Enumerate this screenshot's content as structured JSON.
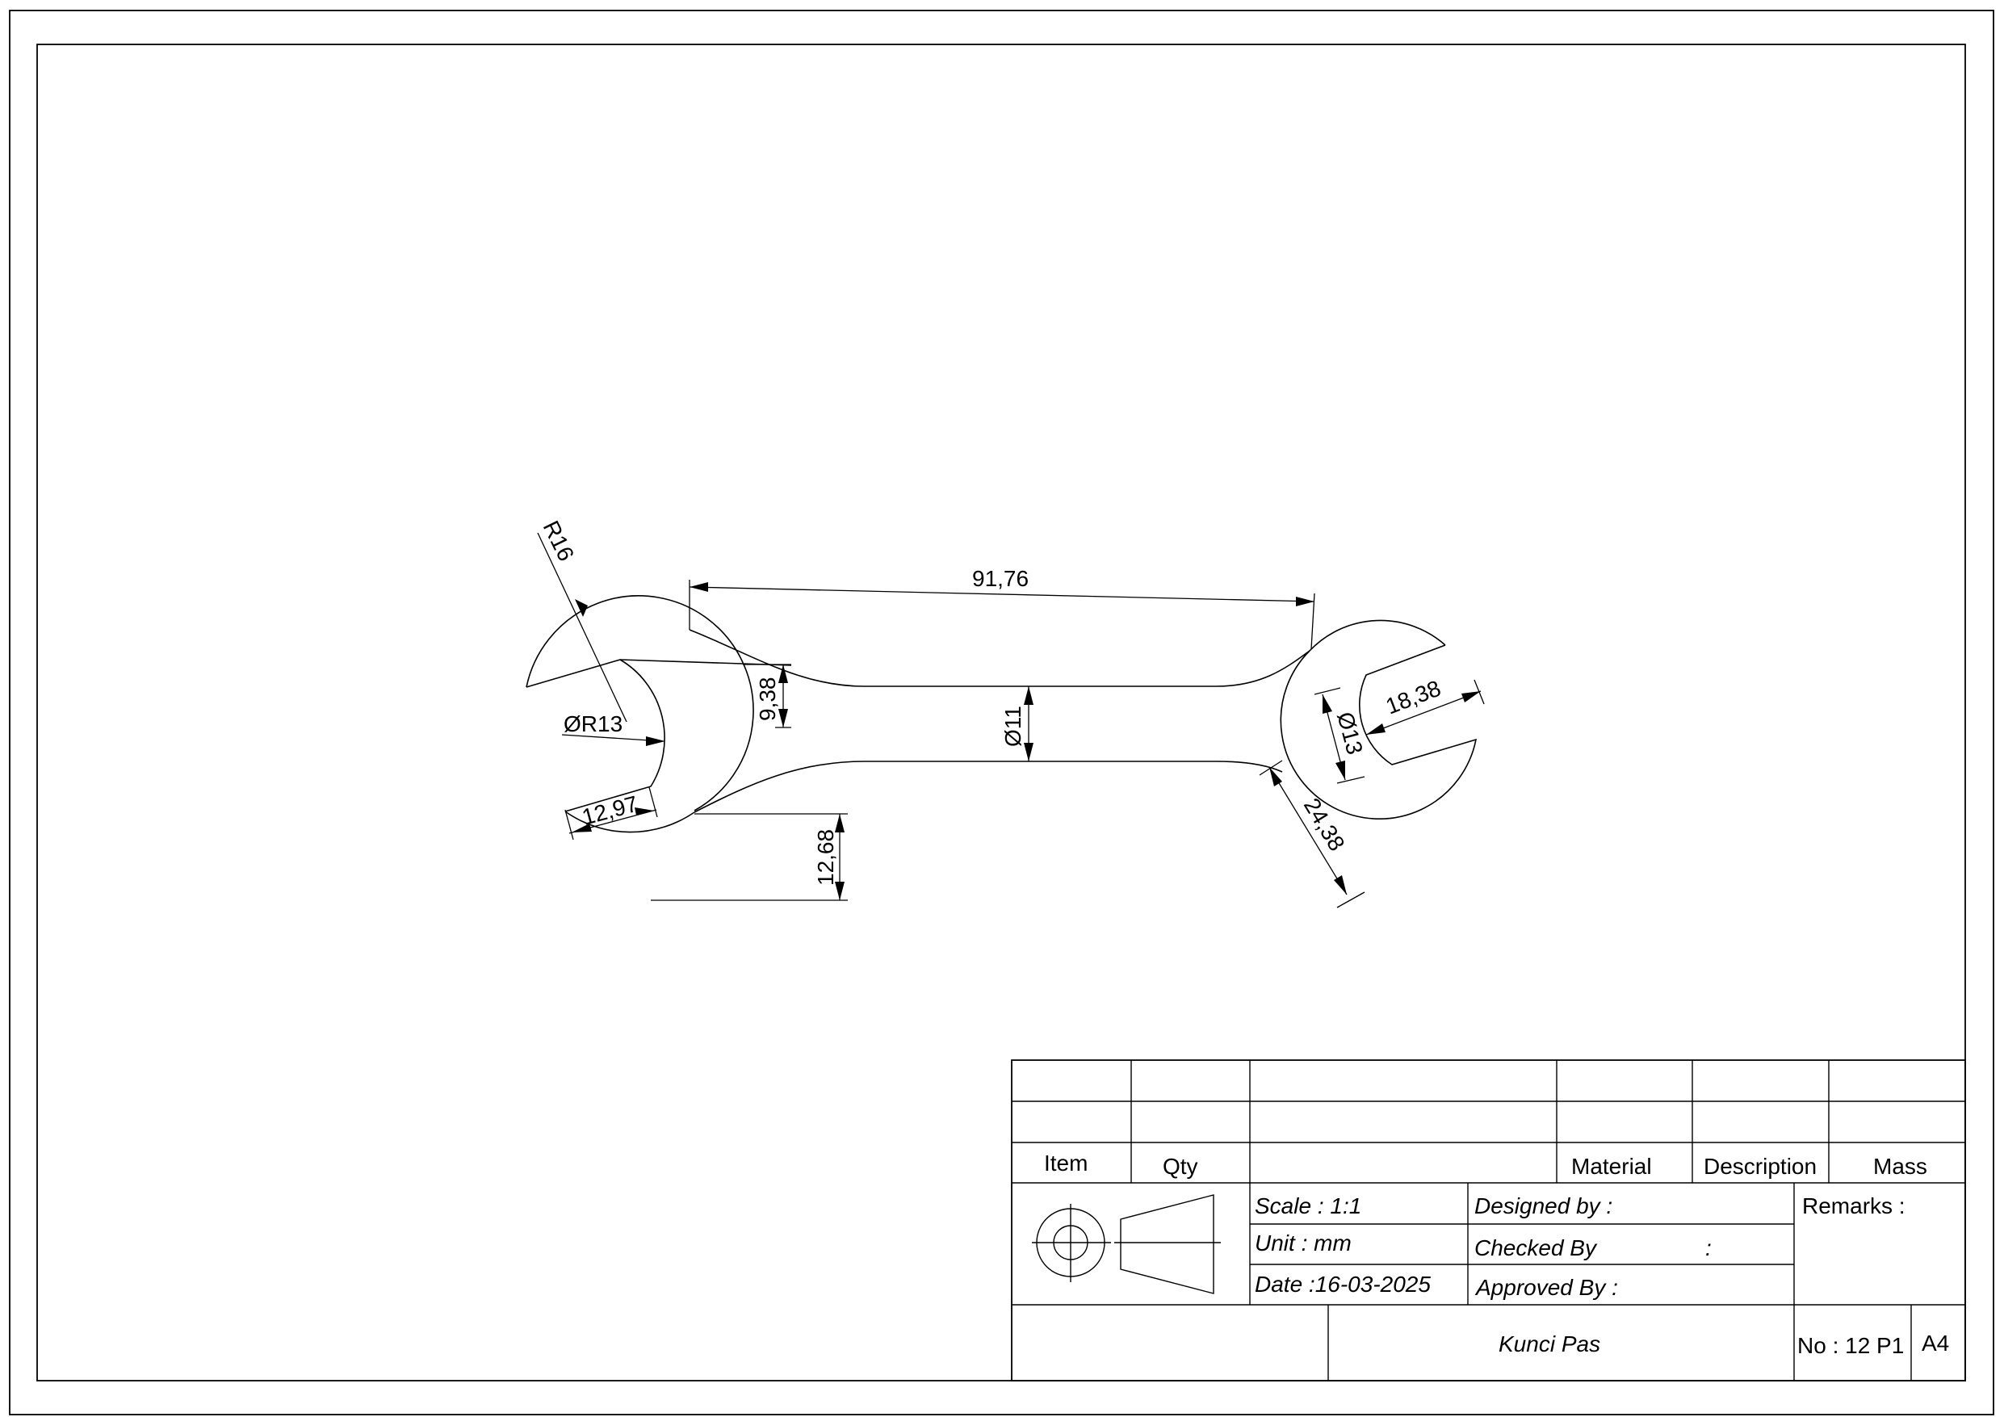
{
  "drawing": {
    "dimensions": {
      "r16": "R16",
      "r13": "ØR13",
      "d1297": "12,97",
      "d938": "9,38",
      "d9176": "91,76",
      "d11": "Ø11",
      "d1268": "12,68",
      "d13": "Ø13",
      "d1838": "18,38",
      "d2438": "24,38"
    }
  },
  "title_block": {
    "headers": {
      "item": "Item",
      "qty": "Qty",
      "material": "Material",
      "description": "Description",
      "mass": "Mass"
    },
    "scale": "Scale : 1:1",
    "unit": "Unit : mm",
    "date": "Date :16-03-2025",
    "designed_by": "Designed by :",
    "checked_by": "Checked By",
    "checked_colon": ":",
    "approved_by": "Approved By :",
    "remarks": "Remarks :",
    "title": "Kunci Pas",
    "number": "No : 12 P1",
    "sheet_size": "A4"
  }
}
